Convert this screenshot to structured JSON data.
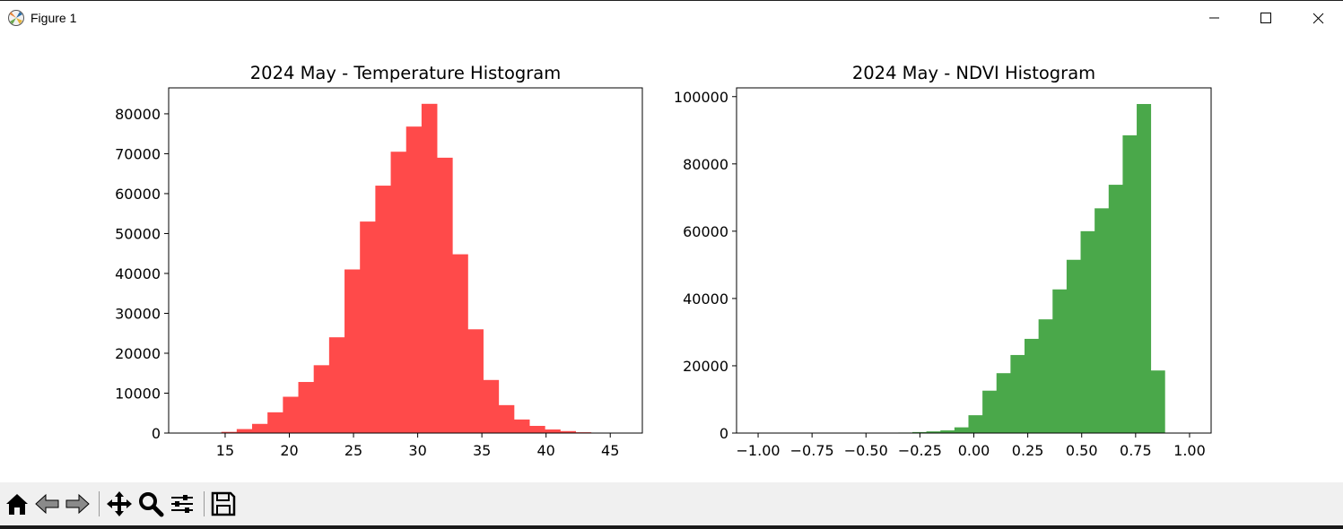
{
  "window": {
    "title": "Figure 1",
    "icons": [
      "matplotlib-icon",
      "minimize-icon",
      "maximize-icon",
      "close-icon"
    ]
  },
  "toolbar": {
    "buttons": [
      "home-icon",
      "back-icon",
      "forward-icon",
      "pan-icon",
      "zoom-icon",
      "configure-subplots-icon",
      "save-icon"
    ]
  },
  "chart_data": [
    {
      "type": "bar",
      "title": "2024 May - Temperature Histogram",
      "xlabel": "",
      "ylabel": "",
      "color": "#ff4a4a",
      "xlim": [
        10.6,
        47.5
      ],
      "ylim": [
        0,
        86500
      ],
      "xticks": [
        15,
        20,
        25,
        30,
        35,
        40,
        45
      ],
      "yticks": [
        0,
        10000,
        20000,
        30000,
        40000,
        50000,
        60000,
        70000,
        80000
      ],
      "bin_edges": [
        12.3,
        13.5,
        14.7,
        15.9,
        17.1,
        18.3,
        19.5,
        20.7,
        21.9,
        23.1,
        24.3,
        25.5,
        26.7,
        27.9,
        29.1,
        30.3,
        31.5,
        32.7,
        33.9,
        35.1,
        36.3,
        37.5,
        38.7,
        39.9,
        41.1,
        42.3,
        43.5,
        44.7,
        45.9
      ],
      "values": [
        0,
        50,
        300,
        1000,
        2300,
        5200,
        9100,
        12800,
        17000,
        24000,
        41000,
        53000,
        62000,
        70500,
        76800,
        82500,
        69000,
        44800,
        26000,
        13300,
        7000,
        3400,
        1800,
        900,
        500,
        200,
        60,
        0
      ]
    },
    {
      "type": "bar",
      "title": "2024 May - NDVI Histogram",
      "xlabel": "",
      "ylabel": "",
      "color": "#4aa84a",
      "xlim": [
        -1.1,
        1.1
      ],
      "ylim": [
        0,
        102600
      ],
      "xticks": [
        -1.0,
        -0.75,
        -0.5,
        -0.25,
        0.0,
        0.25,
        0.5,
        0.75,
        1.0
      ],
      "xtick_labels": [
        "−1.00",
        "−0.75",
        "−0.50",
        "−0.25",
        "0.00",
        "0.25",
        "0.50",
        "0.75",
        "1.00"
      ],
      "yticks": [
        0,
        20000,
        40000,
        60000,
        80000,
        100000
      ],
      "bin_edges": [
        -1.0,
        -0.935,
        -0.87,
        -0.805,
        -0.74,
        -0.675,
        -0.61,
        -0.545,
        -0.48,
        -0.415,
        -0.35,
        -0.285,
        -0.22,
        -0.155,
        -0.09,
        -0.025,
        0.04,
        0.105,
        0.17,
        0.235,
        0.3,
        0.365,
        0.43,
        0.495,
        0.56,
        0.625,
        0.69,
        0.755,
        0.82,
        0.885,
        0.95
      ],
      "values": [
        50,
        50,
        50,
        50,
        50,
        50,
        60,
        70,
        80,
        100,
        150,
        300,
        500,
        800,
        1700,
        5300,
        12600,
        17800,
        23200,
        28000,
        33800,
        42700,
        51500,
        60000,
        66800,
        73800,
        88500,
        97800,
        18600,
        0
      ]
    }
  ]
}
